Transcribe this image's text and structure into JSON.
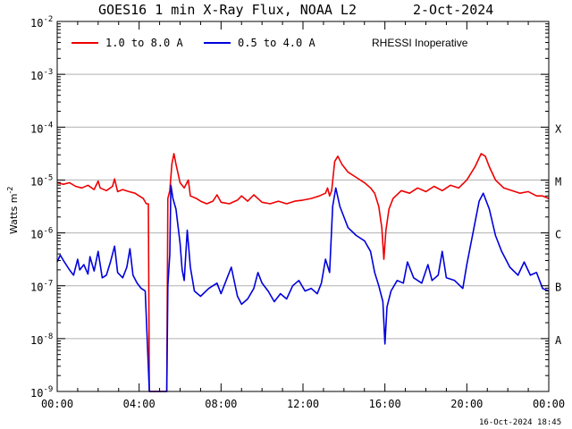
{
  "chart_data": {
    "type": "line",
    "title": "GOES16 1 min X-Ray Flux, NOAA L2",
    "date": "2-Oct-2024",
    "ylabel": "Watts m",
    "ylabel_sup": "-2",
    "yscale": "log",
    "ylim": [
      1e-09,
      0.01
    ],
    "xlim_hours": [
      0,
      24
    ],
    "x_ticks": [
      "00:00",
      "04:00",
      "08:00",
      "12:00",
      "16:00",
      "20:00",
      "00:00"
    ],
    "y_ticks": [
      {
        "base": "10",
        "exp": "-2",
        "value": -2
      },
      {
        "base": "10",
        "exp": "-3",
        "value": -3
      },
      {
        "base": "10",
        "exp": "-4",
        "value": -4
      },
      {
        "base": "10",
        "exp": "-5",
        "value": -5
      },
      {
        "base": "10",
        "exp": "-6",
        "value": -6
      },
      {
        "base": "10",
        "exp": "-7",
        "value": -7
      },
      {
        "base": "10",
        "exp": "-8",
        "value": -8
      },
      {
        "base": "10",
        "exp": "-9",
        "value": -9
      }
    ],
    "flare_classes": [
      {
        "label": "X",
        "value": -4
      },
      {
        "label": "M",
        "value": -5
      },
      {
        "label": "C",
        "value": -6
      },
      {
        "label": "B",
        "value": -7
      },
      {
        "label": "A",
        "value": -8
      }
    ],
    "note": "RHESSI Inoperative",
    "timestamp": "16-Oct-2024 18:45",
    "series": [
      {
        "name": "1.0 to 8.0 A",
        "color": "#ee0000",
        "points": [
          [
            0.0,
            -5.05
          ],
          [
            0.3,
            -5.08
          ],
          [
            0.6,
            -5.05
          ],
          [
            0.9,
            -5.12
          ],
          [
            1.2,
            -5.15
          ],
          [
            1.5,
            -5.1
          ],
          [
            1.8,
            -5.18
          ],
          [
            2.0,
            -5.02
          ],
          [
            2.1,
            -5.15
          ],
          [
            2.4,
            -5.2
          ],
          [
            2.7,
            -5.12
          ],
          [
            2.8,
            -4.98
          ],
          [
            2.95,
            -5.22
          ],
          [
            3.2,
            -5.18
          ],
          [
            3.5,
            -5.22
          ],
          [
            3.8,
            -5.25
          ],
          [
            4.0,
            -5.3
          ],
          [
            4.2,
            -5.35
          ],
          [
            4.35,
            -5.45
          ],
          [
            4.45,
            -5.45
          ],
          [
            4.5,
            -9.0
          ],
          [
            5.35,
            -9.0
          ],
          [
            5.4,
            -5.35
          ],
          [
            5.5,
            -5.2
          ],
          [
            5.6,
            -4.7
          ],
          [
            5.7,
            -4.5
          ],
          [
            5.8,
            -4.7
          ],
          [
            6.0,
            -5.05
          ],
          [
            6.2,
            -5.15
          ],
          [
            6.4,
            -5.0
          ],
          [
            6.5,
            -5.3
          ],
          [
            6.8,
            -5.35
          ],
          [
            7.0,
            -5.4
          ],
          [
            7.3,
            -5.45
          ],
          [
            7.6,
            -5.4
          ],
          [
            7.8,
            -5.28
          ],
          [
            8.0,
            -5.42
          ],
          [
            8.4,
            -5.45
          ],
          [
            8.8,
            -5.38
          ],
          [
            9.0,
            -5.3
          ],
          [
            9.3,
            -5.4
          ],
          [
            9.6,
            -5.28
          ],
          [
            10.0,
            -5.42
          ],
          [
            10.4,
            -5.45
          ],
          [
            10.8,
            -5.4
          ],
          [
            11.2,
            -5.45
          ],
          [
            11.6,
            -5.4
          ],
          [
            12.0,
            -5.38
          ],
          [
            12.4,
            -5.35
          ],
          [
            12.8,
            -5.3
          ],
          [
            13.1,
            -5.25
          ],
          [
            13.2,
            -5.15
          ],
          [
            13.3,
            -5.3
          ],
          [
            13.4,
            -5.2
          ],
          [
            13.55,
            -4.65
          ],
          [
            13.7,
            -4.55
          ],
          [
            13.9,
            -4.7
          ],
          [
            14.2,
            -4.85
          ],
          [
            14.6,
            -4.95
          ],
          [
            15.0,
            -5.05
          ],
          [
            15.3,
            -5.15
          ],
          [
            15.5,
            -5.25
          ],
          [
            15.7,
            -5.5
          ],
          [
            15.85,
            -5.9
          ],
          [
            15.95,
            -6.5
          ],
          [
            16.05,
            -5.95
          ],
          [
            16.2,
            -5.55
          ],
          [
            16.4,
            -5.35
          ],
          [
            16.8,
            -5.2
          ],
          [
            17.2,
            -5.25
          ],
          [
            17.6,
            -5.15
          ],
          [
            18.0,
            -5.22
          ],
          [
            18.4,
            -5.12
          ],
          [
            18.8,
            -5.2
          ],
          [
            19.2,
            -5.1
          ],
          [
            19.6,
            -5.15
          ],
          [
            20.0,
            -5.0
          ],
          [
            20.4,
            -4.75
          ],
          [
            20.7,
            -4.5
          ],
          [
            20.9,
            -4.55
          ],
          [
            21.1,
            -4.75
          ],
          [
            21.4,
            -5.0
          ],
          [
            21.8,
            -5.15
          ],
          [
            22.2,
            -5.2
          ],
          [
            22.6,
            -5.25
          ],
          [
            23.0,
            -5.22
          ],
          [
            23.4,
            -5.3
          ],
          [
            23.7,
            -5.3
          ],
          [
            24.0,
            -5.35
          ]
        ]
      },
      {
        "name": "0.5 to 4.0 A",
        "color": "#0000dd",
        "points": [
          [
            0.0,
            -6.55
          ],
          [
            0.15,
            -6.42
          ],
          [
            0.35,
            -6.55
          ],
          [
            0.6,
            -6.7
          ],
          [
            0.8,
            -6.8
          ],
          [
            1.0,
            -6.5
          ],
          [
            1.1,
            -6.7
          ],
          [
            1.3,
            -6.6
          ],
          [
            1.5,
            -6.78
          ],
          [
            1.6,
            -6.45
          ],
          [
            1.8,
            -6.72
          ],
          [
            2.0,
            -6.35
          ],
          [
            2.2,
            -6.85
          ],
          [
            2.4,
            -6.8
          ],
          [
            2.6,
            -6.55
          ],
          [
            2.8,
            -6.25
          ],
          [
            2.95,
            -6.75
          ],
          [
            3.2,
            -6.85
          ],
          [
            3.4,
            -6.65
          ],
          [
            3.55,
            -6.3
          ],
          [
            3.7,
            -6.8
          ],
          [
            3.9,
            -6.95
          ],
          [
            4.1,
            -7.05
          ],
          [
            4.3,
            -7.1
          ],
          [
            4.5,
            -9.0
          ],
          [
            5.35,
            -9.0
          ],
          [
            5.4,
            -7.0
          ],
          [
            5.5,
            -6.4
          ],
          [
            5.55,
            -5.1
          ],
          [
            5.65,
            -5.35
          ],
          [
            5.8,
            -5.55
          ],
          [
            6.0,
            -6.2
          ],
          [
            6.1,
            -6.7
          ],
          [
            6.2,
            -6.9
          ],
          [
            6.35,
            -5.95
          ],
          [
            6.5,
            -6.65
          ],
          [
            6.7,
            -7.1
          ],
          [
            7.0,
            -7.2
          ],
          [
            7.4,
            -7.05
          ],
          [
            7.8,
            -6.95
          ],
          [
            8.0,
            -7.15
          ],
          [
            8.3,
            -6.85
          ],
          [
            8.5,
            -6.65
          ],
          [
            8.8,
            -7.2
          ],
          [
            9.0,
            -7.35
          ],
          [
            9.3,
            -7.25
          ],
          [
            9.6,
            -7.05
          ],
          [
            9.8,
            -6.75
          ],
          [
            10.0,
            -6.95
          ],
          [
            10.3,
            -7.1
          ],
          [
            10.6,
            -7.3
          ],
          [
            10.9,
            -7.15
          ],
          [
            11.2,
            -7.25
          ],
          [
            11.5,
            -7.0
          ],
          [
            11.8,
            -6.9
          ],
          [
            12.1,
            -7.1
          ],
          [
            12.4,
            -7.05
          ],
          [
            12.7,
            -7.15
          ],
          [
            12.9,
            -6.95
          ],
          [
            13.1,
            -6.5
          ],
          [
            13.3,
            -6.75
          ],
          [
            13.45,
            -5.5
          ],
          [
            13.6,
            -5.15
          ],
          [
            13.8,
            -5.5
          ],
          [
            14.2,
            -5.9
          ],
          [
            14.6,
            -6.05
          ],
          [
            15.0,
            -6.15
          ],
          [
            15.3,
            -6.35
          ],
          [
            15.5,
            -6.75
          ],
          [
            15.7,
            -7.0
          ],
          [
            15.9,
            -7.3
          ],
          [
            16.0,
            -8.1
          ],
          [
            16.1,
            -7.4
          ],
          [
            16.3,
            -7.1
          ],
          [
            16.6,
            -6.9
          ],
          [
            16.9,
            -6.95
          ],
          [
            17.1,
            -6.55
          ],
          [
            17.4,
            -6.85
          ],
          [
            17.8,
            -6.95
          ],
          [
            18.1,
            -6.6
          ],
          [
            18.3,
            -6.9
          ],
          [
            18.6,
            -6.8
          ],
          [
            18.8,
            -6.35
          ],
          [
            19.0,
            -6.85
          ],
          [
            19.4,
            -6.9
          ],
          [
            19.8,
            -7.05
          ],
          [
            20.0,
            -6.6
          ],
          [
            20.3,
            -6.0
          ],
          [
            20.6,
            -5.4
          ],
          [
            20.8,
            -5.25
          ],
          [
            21.1,
            -5.55
          ],
          [
            21.4,
            -6.05
          ],
          [
            21.7,
            -6.35
          ],
          [
            22.1,
            -6.65
          ],
          [
            22.5,
            -6.8
          ],
          [
            22.8,
            -6.55
          ],
          [
            23.1,
            -6.8
          ],
          [
            23.4,
            -6.75
          ],
          [
            23.7,
            -7.05
          ],
          [
            24.0,
            -7.1
          ]
        ]
      }
    ]
  }
}
